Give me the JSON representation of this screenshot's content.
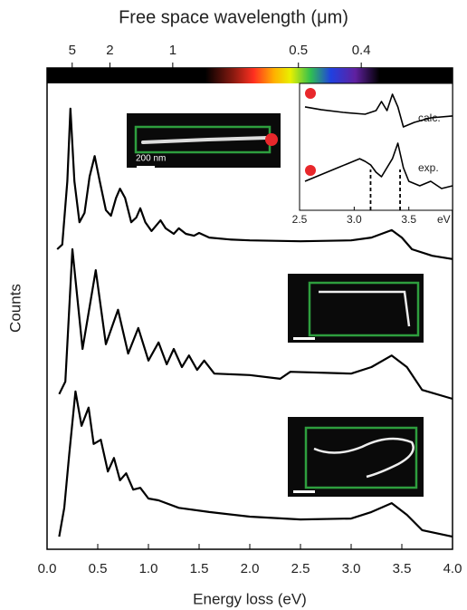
{
  "chart_data": [
    {
      "type": "line",
      "xlabel": "Energy loss (eV)",
      "ylabel": "Counts",
      "x2label": "Free space wavelength (μm)",
      "xlim": [
        0,
        4
      ],
      "ylim": [
        0,
        10
      ],
      "xticks": [
        {
          "value": 0,
          "label": "0.0"
        },
        0.5,
        {
          "value": 1,
          "label": "1.0"
        },
        1.5,
        {
          "value": 2,
          "label": "2.0"
        },
        2.5,
        {
          "value": 3,
          "label": "3.0"
        },
        3.5,
        {
          "value": 4,
          "label": "4.0"
        }
      ],
      "x2ticks": [
        5,
        2,
        1,
        0.5,
        0.4
      ],
      "x2scale": "reciprocal",
      "scale_bar": "200 nm",
      "series": [
        {
          "color": "#000000",
          "x": [
            0.1,
            0.15,
            0.2,
            0.23,
            0.27,
            0.32,
            0.37,
            0.42,
            0.47,
            0.52,
            0.58,
            0.63,
            0.68,
            0.72,
            0.77,
            0.83,
            0.88,
            0.92,
            0.97,
            1.03,
            1.08,
            1.12,
            1.17,
            1.25,
            1.3,
            1.37,
            1.45,
            1.5,
            1.6,
            1.8,
            2.0,
            2.5,
            3.0,
            3.2,
            3.4,
            3.5,
            3.6,
            3.8,
            4.0
          ],
          "values": [
            6.44,
            6.54,
            7.9,
            9.46,
            7.9,
            7.02,
            7.22,
            8.0,
            8.44,
            7.9,
            7.28,
            7.16,
            7.54,
            7.74,
            7.54,
            7.02,
            7.12,
            7.32,
            7.02,
            6.83,
            6.96,
            7.06,
            6.89,
            6.77,
            6.89,
            6.77,
            6.73,
            6.79,
            6.69,
            6.65,
            6.63,
            6.61,
            6.63,
            6.69,
            6.85,
            6.69,
            6.44,
            6.3,
            6.23
          ]
        },
        {
          "color": "#000000",
          "x": [
            0.12,
            0.18,
            0.25,
            0.35,
            0.48,
            0.58,
            0.7,
            0.8,
            0.9,
            1.0,
            1.1,
            1.18,
            1.25,
            1.33,
            1.4,
            1.48,
            1.55,
            1.65,
            2.0,
            2.3,
            2.4,
            3.0,
            3.2,
            3.4,
            3.55,
            3.7,
            4.0
          ],
          "values": [
            3.33,
            3.6,
            6.44,
            4.3,
            5.99,
            4.4,
            5.14,
            4.2,
            4.75,
            4.05,
            4.44,
            3.97,
            4.3,
            3.91,
            4.16,
            3.85,
            4.05,
            3.77,
            3.74,
            3.66,
            3.81,
            3.77,
            3.91,
            4.16,
            3.91,
            3.42,
            3.23
          ]
        },
        {
          "color": "#000000",
          "x": [
            0.12,
            0.17,
            0.22,
            0.28,
            0.34,
            0.41,
            0.46,
            0.53,
            0.6,
            0.66,
            0.72,
            0.78,
            0.85,
            0.92,
            1.0,
            1.1,
            1.3,
            1.6,
            2.0,
            2.5,
            3.0,
            3.2,
            3.4,
            3.55,
            3.7,
            4.0
          ],
          "values": [
            0.27,
            0.89,
            2.06,
            3.39,
            2.65,
            3.04,
            2.26,
            2.35,
            1.67,
            1.96,
            1.48,
            1.63,
            1.28,
            1.32,
            1.09,
            1.05,
            0.89,
            0.8,
            0.7,
            0.64,
            0.66,
            0.8,
            0.99,
            0.74,
            0.41,
            0.27
          ]
        }
      ]
    },
    {
      "type": "line",
      "xlabel": "eV",
      "xlim": [
        2.5,
        3.9
      ],
      "ylim": [
        0,
        10
      ],
      "xticks": [
        2.5,
        {
          "value": 3,
          "label": "3.0"
        },
        3.5
      ],
      "markers": [
        3.15,
        3.42
      ],
      "series": [
        {
          "name": "calc.",
          "color": "#000000",
          "x": [
            2.55,
            2.7,
            2.9,
            3.1,
            3.2,
            3.25,
            3.3,
            3.35,
            3.4,
            3.45,
            3.55,
            3.7,
            3.9
          ],
          "values": [
            8.3,
            8.07,
            7.85,
            7.7,
            8.0,
            8.74,
            8.0,
            9.33,
            8.3,
            6.67,
            7.04,
            7.41,
            7.56
          ]
        },
        {
          "name": "exp.",
          "color": "#000000",
          "x": [
            2.55,
            2.65,
            2.75,
            2.85,
            2.95,
            3.05,
            3.1,
            3.15,
            3.2,
            3.25,
            3.35,
            3.4,
            3.45,
            3.5,
            3.6,
            3.7,
            3.8,
            3.9
          ],
          "values": [
            2.22,
            2.59,
            2.96,
            3.33,
            3.7,
            4.07,
            3.85,
            3.56,
            2.96,
            2.59,
            4.07,
            5.33,
            3.33,
            2.22,
            1.85,
            2.22,
            1.63,
            1.85
          ]
        }
      ]
    }
  ]
}
